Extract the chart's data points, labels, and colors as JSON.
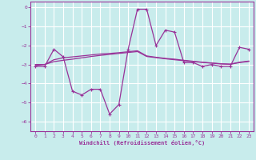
{
  "xlabel": "Windchill (Refroidissement éolien,°C)",
  "bg_color": "#c8ecec",
  "grid_color": "#ffffff",
  "line_color": "#993399",
  "ylim": [
    -6.5,
    0.3
  ],
  "xlim": [
    -0.5,
    23.5
  ],
  "yticks": [
    0,
    -1,
    -2,
    -3,
    -4,
    -5,
    -6
  ],
  "xticks": [
    0,
    1,
    2,
    3,
    4,
    5,
    6,
    7,
    8,
    9,
    10,
    11,
    12,
    13,
    14,
    15,
    16,
    17,
    18,
    19,
    20,
    21,
    22,
    23
  ],
  "series1_x": [
    0,
    1,
    2,
    3,
    4,
    5,
    6,
    7,
    8,
    9,
    10,
    11,
    12,
    13,
    14,
    15,
    16,
    17,
    18,
    19,
    20,
    21,
    22,
    23
  ],
  "series1_y": [
    -3.1,
    -3.1,
    -2.2,
    -2.6,
    -4.4,
    -4.6,
    -4.3,
    -4.3,
    -5.6,
    -5.1,
    -2.2,
    -0.1,
    -0.1,
    -2.0,
    -1.2,
    -1.3,
    -2.9,
    -2.9,
    -3.1,
    -3.0,
    -3.1,
    -3.1,
    -2.1,
    -2.2
  ],
  "series2_x": [
    0,
    1,
    2,
    3,
    4,
    5,
    6,
    7,
    8,
    9,
    10,
    11,
    12,
    13,
    14,
    15,
    16,
    17,
    18,
    19,
    20,
    21,
    22,
    23
  ],
  "series2_y": [
    -3.05,
    -3.0,
    -2.75,
    -2.65,
    -2.6,
    -2.55,
    -2.5,
    -2.45,
    -2.42,
    -2.38,
    -2.33,
    -2.28,
    -2.55,
    -2.62,
    -2.68,
    -2.72,
    -2.78,
    -2.83,
    -2.88,
    -2.92,
    -2.96,
    -2.98,
    -2.88,
    -2.82
  ],
  "series3_x": [
    0,
    1,
    2,
    3,
    4,
    5,
    6,
    7,
    8,
    9,
    10,
    11,
    12,
    13,
    14,
    15,
    16,
    17,
    18,
    19,
    20,
    21,
    22,
    23
  ],
  "series3_y": [
    -3.0,
    -3.0,
    -2.85,
    -2.78,
    -2.72,
    -2.65,
    -2.58,
    -2.52,
    -2.47,
    -2.42,
    -2.37,
    -2.32,
    -2.58,
    -2.64,
    -2.7,
    -2.75,
    -2.8,
    -2.85,
    -2.89,
    -2.93,
    -2.97,
    -2.99,
    -2.9,
    -2.84
  ]
}
